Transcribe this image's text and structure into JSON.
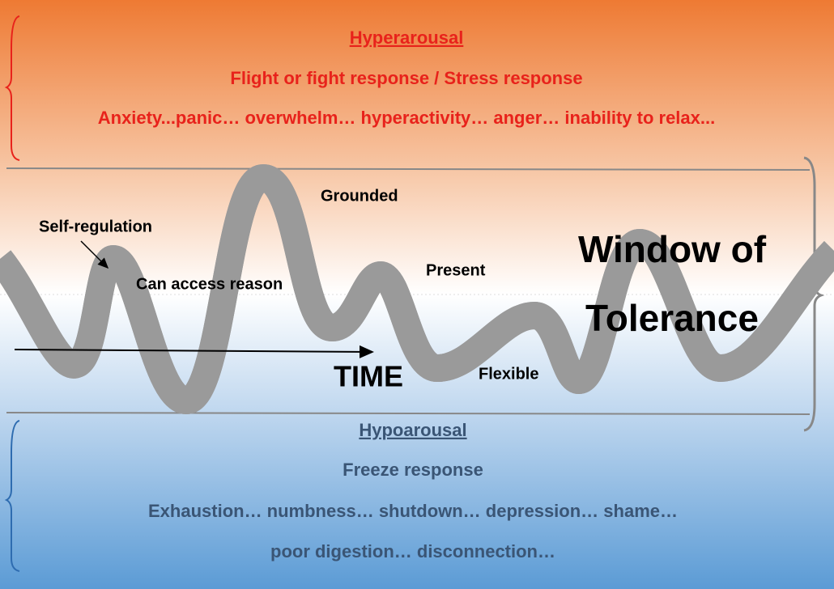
{
  "hyperarousal": {
    "title": "Hyperarousal",
    "lines": [
      "Flight or fight response / Stress response",
      "Anxiety...panic… overwhelm… hyperactivity… anger… inability to relax..."
    ]
  },
  "window": {
    "title_lines": [
      "Window of",
      "Tolerance"
    ],
    "labels": [
      "Self-regulation",
      "Can access reason",
      "Grounded",
      "Present",
      "Flexible"
    ],
    "axis": "TIME"
  },
  "hypoarousal": {
    "title": "Hypoarousal",
    "lines": [
      "Freeze response",
      "Exhaustion… numbness… shutdown… depression… shame…",
      "poor digestion… disconnection…"
    ]
  }
}
